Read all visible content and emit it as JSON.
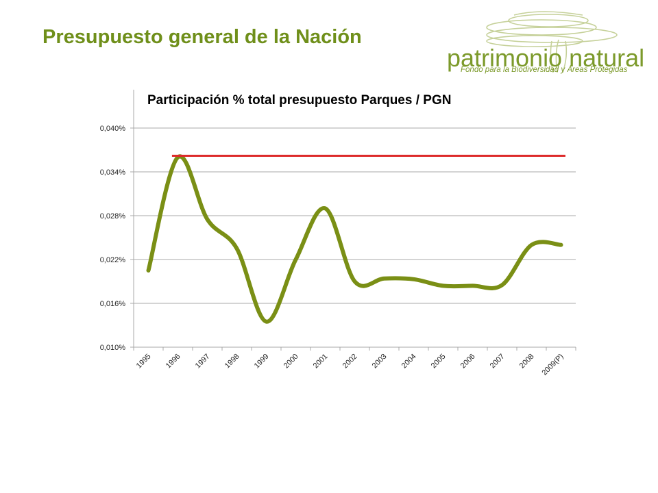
{
  "slide": {
    "title": "Presupuesto general de la Nación"
  },
  "logo": {
    "wordmark": "patrimonio natural",
    "tagline": "Fondo para la Biodiversidad y Áreas Protegidas",
    "color": "#7c9a2b"
  },
  "chart_data": {
    "type": "line",
    "title": "Participación % total presupuesto Parques / PGN",
    "xlabel": "",
    "ylabel": "",
    "categories": [
      "1995",
      "1996",
      "1997",
      "1998",
      "1999",
      "2000",
      "2001",
      "2002",
      "2003",
      "2004",
      "2005",
      "2006",
      "2007",
      "2008",
      "2009(P)"
    ],
    "y_ticks": [
      "0,010%",
      "0,016%",
      "0,022%",
      "0,028%",
      "0,034%",
      "0,040%"
    ],
    "y_tick_values": [
      0.01,
      0.016,
      0.022,
      0.028,
      0.034,
      0.04
    ],
    "ylim": [
      0.01,
      0.04
    ],
    "grid": true,
    "series": [
      {
        "color": "#7a8f15",
        "values": [
          0.0205,
          0.036,
          0.0275,
          0.0235,
          0.0135,
          0.022,
          0.029,
          0.019,
          0.0194,
          0.0193,
          0.0184,
          0.0184,
          0.0185,
          0.024,
          0.024
        ]
      }
    ],
    "reference_line": {
      "value": 0.0362,
      "color": "#dd2a2a",
      "from_index": 0.8,
      "to_index": 14.15
    }
  }
}
